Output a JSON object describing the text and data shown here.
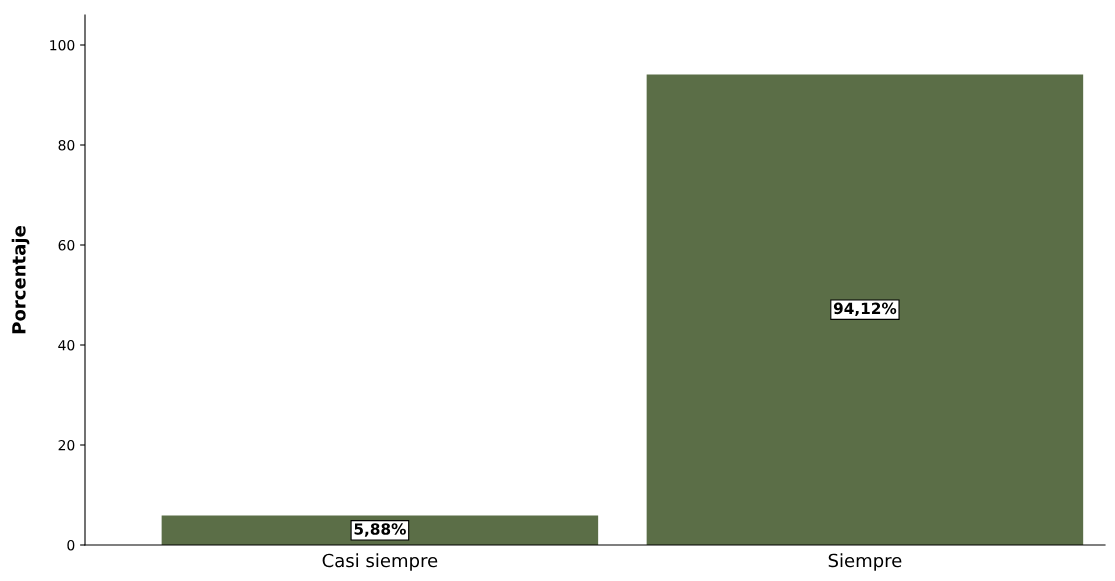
{
  "chart_data": {
    "type": "bar",
    "ylabel": "Porcentaje",
    "categories": [
      "Casi siempre",
      "Siempre"
    ],
    "values": [
      5.88,
      94.12
    ],
    "color": "#5b6e47",
    "value_labels": [
      "5,88%",
      "94,12%"
    ],
    "ylim": [
      0,
      106
    ],
    "yticks": [
      0,
      20,
      40,
      60,
      80,
      100
    ],
    "grid": false,
    "legend": false
  }
}
